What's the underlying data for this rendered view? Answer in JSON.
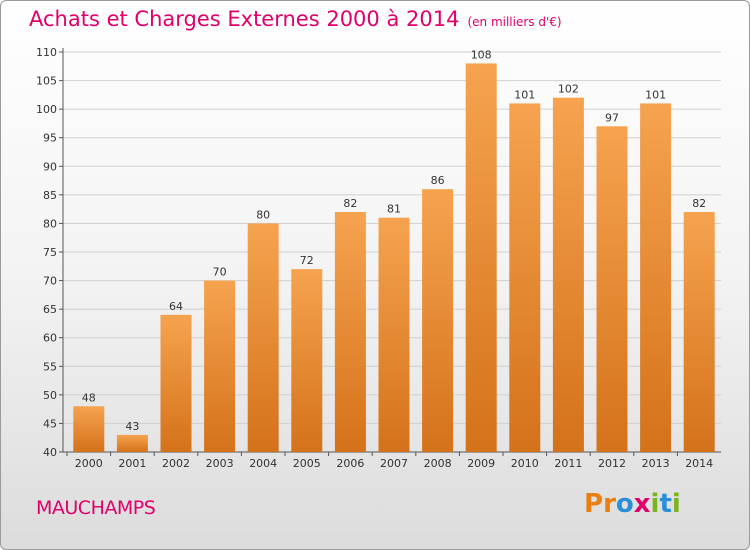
{
  "title": "Achats et Charges Externes 2000 à 2014",
  "subtitle": "(en milliers d'€)",
  "town": "MAUCHAMPS",
  "logo": "Proxiti",
  "colors": {
    "bar_top": "#f6a34f",
    "bar_bottom": "#d4721a",
    "title": "#e0006a"
  },
  "chart_data": {
    "type": "bar",
    "title": "Achats et Charges Externes 2000 à 2014",
    "subtitle": "(en milliers d'€)",
    "categories": [
      "2000",
      "2001",
      "2002",
      "2003",
      "2004",
      "2005",
      "2006",
      "2007",
      "2008",
      "2009",
      "2010",
      "2011",
      "2012",
      "2013",
      "2014"
    ],
    "values": [
      48,
      43,
      64,
      70,
      80,
      72,
      82,
      81,
      86,
      108,
      101,
      102,
      97,
      101,
      82
    ],
    "ylim": [
      40,
      110
    ],
    "yticks": [
      40,
      45,
      50,
      55,
      60,
      65,
      70,
      75,
      80,
      85,
      90,
      95,
      100,
      105,
      110
    ],
    "grid": true
  }
}
